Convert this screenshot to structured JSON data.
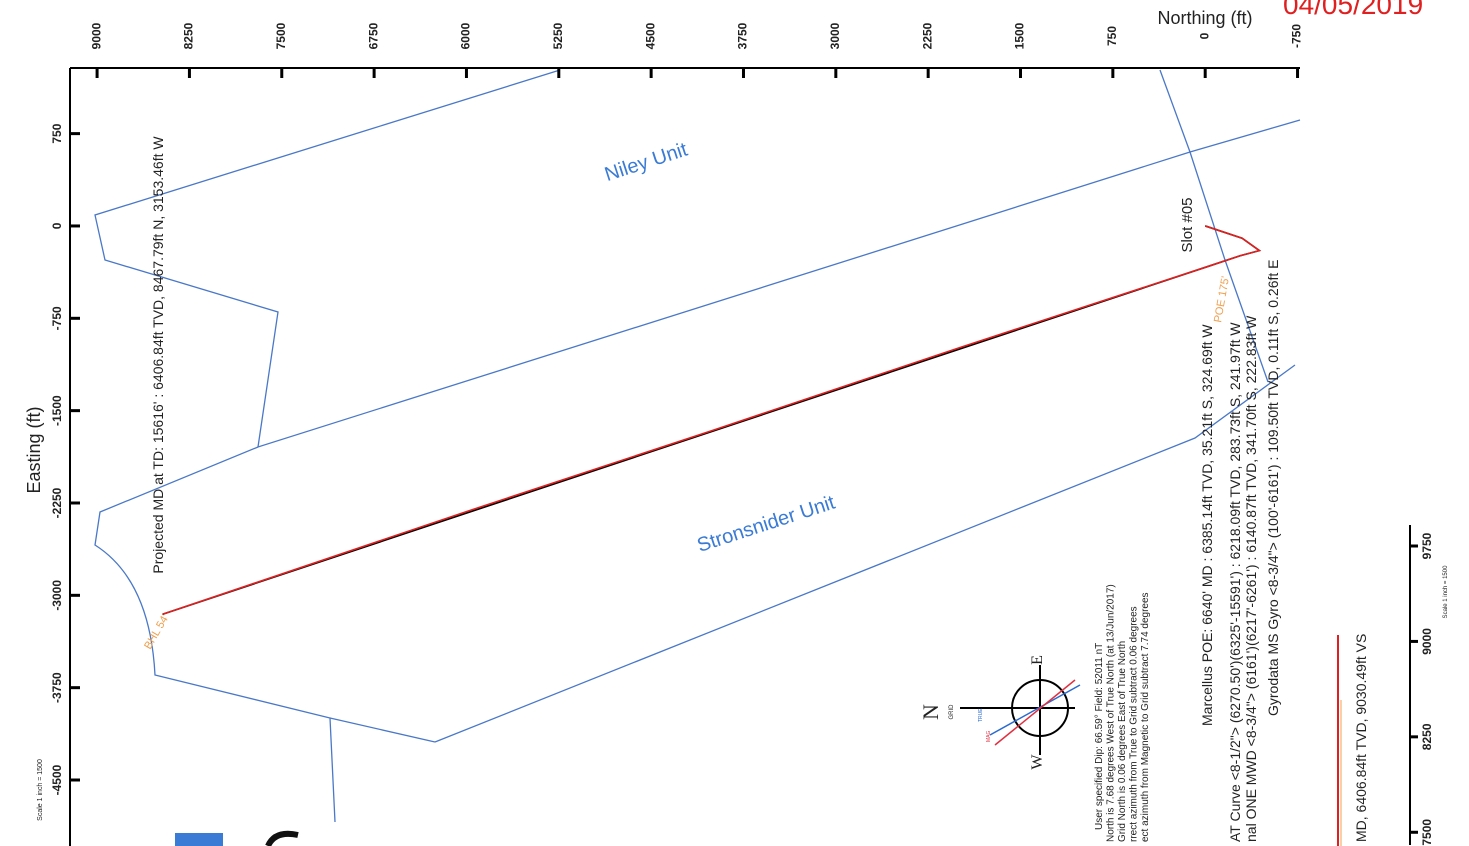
{
  "date": "04/05/2019",
  "chart_data": [
    {
      "type": "line",
      "title": "Northing (ft)",
      "y_label": "Easting (ft)",
      "xlim": [
        9220,
        -770
      ],
      "xticks": [
        9000,
        8250,
        7500,
        6750,
        6000,
        5250,
        4500,
        3750,
        3000,
        2250,
        1500,
        750,
        0,
        -750
      ],
      "ylim": [
        -5036,
        1283
      ],
      "yticks": [
        750,
        0,
        -750,
        -1500,
        -2250,
        -3000,
        -3750,
        -4500
      ],
      "series": [
        {
          "color": "#000000",
          "x": [
            0,
            -300,
            -440,
            -283.73,
            -35.21,
            8467.79
          ],
          "values": [
            0.26,
            -100,
            -200,
            -241.97,
            -324.69,
            -3153.46
          ]
        },
        {
          "color": "#e02020",
          "x": [
            0,
            -300,
            -440,
            -283.73,
            -35.21,
            2000,
            4000,
            6000,
            8467.79
          ],
          "values": [
            0.26,
            -100,
            -200,
            -241.97,
            -324.69,
            -990,
            -1660,
            -2320,
            -3153.46
          ]
        }
      ],
      "annotations": {
        "niley": "Niley Unit",
        "stronsnider": "Stronsnider Unit",
        "projected": "Projected MD at TD: 15616' : 6406.84ft TVD, 8467.79ft N, 3153.46ft W",
        "bhl": "BHL 54'",
        "slot": "Slot #05",
        "poe": "POE 175'",
        "marcellus": "Marcellus POE: 6640' MD : 6385.14ft TVD, 35.21ft S, 324.69ft W",
        "at_curve": "AT Curve <8-1/2\"> (6270.50')(6325'-15591') : 6218.09ft TVD, 283.73ft S, 241.97ft W",
        "mwd": "nal ONE MWD <8-3/4\"> (6161')(6217'-6261') : 6140.87ft TVD, 341.70ft S, 222.83ft W",
        "gyro": "Gyrodata MS Gyro <8-3/4\"> (100'-6161') : 109.50ft TVD, 0.11ft S, 0.26ft E",
        "scale": "Scale 1 inch = 1500"
      },
      "notes": [
        "User specified Dip: 66.59°  Field: 52011 nT",
        "North is 7.68 degrees West of True North (at 13/Jun/2017)",
        "Grid North is 0.06 degrees East of True North",
        "rrect azimuth from True to Grid subtract 0.06 degrees",
        "ect azimuth from Magnetic to Grid subtract 7.74 degrees"
      ],
      "compass": {
        "n": "N",
        "grid": "GRID",
        "e": "E",
        "w": "W",
        "true": "TRUE",
        "mag": "MAG"
      }
    },
    {
      "type": "line",
      "title": "MD, 6406.84ft TVD, 9030.49ft VS",
      "scale": "Scale 1 inch = 1500",
      "ylim": [
        7400,
        9915
      ],
      "yticks": [
        7500,
        8250,
        9000,
        9750
      ]
    }
  ]
}
